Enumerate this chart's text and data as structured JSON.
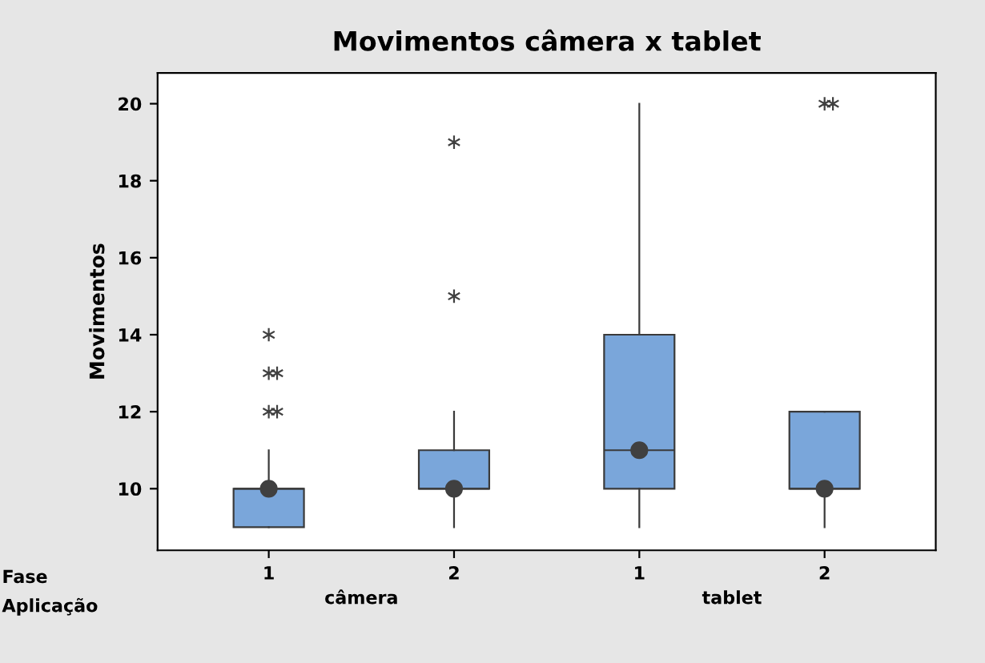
{
  "chart_data": {
    "type": "box",
    "title": "Movimentos câmera x tablet",
    "ylabel": "Movimentos",
    "categories": [
      "1",
      "2",
      "1",
      "2"
    ],
    "boxes": [
      {
        "low": 9,
        "q1": 9,
        "median": 10,
        "q3": 10,
        "high": 11,
        "mean": 10,
        "outliers": [
          12,
          12,
          13,
          13,
          14
        ]
      },
      {
        "low": 9,
        "q1": 10,
        "median": 10,
        "q3": 11,
        "high": 12,
        "mean": 10,
        "outliers": [
          15,
          19
        ]
      },
      {
        "low": 9,
        "q1": 10,
        "median": 11,
        "q3": 14,
        "high": 20,
        "mean": 11
      },
      {
        "low": 9,
        "q1": 10,
        "median": 10,
        "q3": 12,
        "high": 12,
        "mean": 10,
        "outliers": [
          20,
          20
        ]
      }
    ],
    "color": "#7aa6da",
    "ylim": [
      8.4,
      20.8
    ],
    "yticks": [
      10,
      12,
      14,
      16,
      18,
      20
    ],
    "grid": false,
    "annotations": [
      "Fase",
      "Aplicação",
      "câmera",
      "tablet"
    ]
  }
}
